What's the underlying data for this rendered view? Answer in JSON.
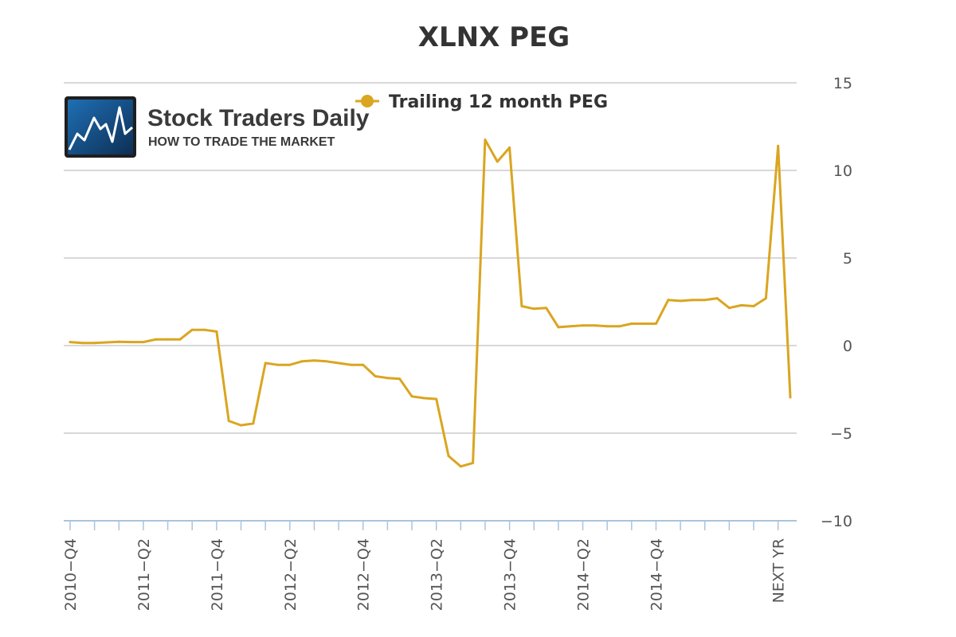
{
  "logo": {
    "name": "Stock Traders Daily",
    "tagline": "HOW TO TRADE THE MARKET"
  },
  "chart_data": {
    "type": "line",
    "title": "XLNX PEG",
    "xlabel": "",
    "ylabel": "",
    "ylim": [
      -10,
      15
    ],
    "yticks": [
      15,
      10,
      5,
      0,
      -5,
      -10
    ],
    "grid": true,
    "legend_placement": "top-center",
    "x_tick_labels": [
      {
        "index": 0,
        "label": "2010-Q4"
      },
      {
        "index": 6,
        "label": "2011-Q2"
      },
      {
        "index": 12,
        "label": "2011-Q4"
      },
      {
        "index": 18,
        "label": "2012-Q2"
      },
      {
        "index": 24,
        "label": "2012-Q4"
      },
      {
        "index": 30,
        "label": "2013-Q2"
      },
      {
        "index": 36,
        "label": "2013-Q4"
      },
      {
        "index": 42,
        "label": "2014-Q2"
      },
      {
        "index": 48,
        "label": "2014-Q4"
      },
      {
        "index": 58,
        "label": "NEXT YR"
      }
    ],
    "series": [
      {
        "name": "Trailing 12 month PEG",
        "color": "#DAA520",
        "values": [
          0.2,
          0.15,
          0.15,
          0.18,
          0.22,
          0.2,
          0.2,
          0.35,
          0.35,
          0.35,
          0.9,
          0.9,
          0.8,
          -4.3,
          -4.55,
          -4.45,
          -1.0,
          -1.1,
          -1.1,
          -0.9,
          -0.85,
          -0.9,
          -1.0,
          -1.1,
          -1.1,
          -1.75,
          -1.85,
          -1.9,
          -2.9,
          -3.0,
          -3.05,
          -6.3,
          -6.9,
          -6.7,
          11.75,
          10.5,
          11.3,
          2.25,
          2.1,
          2.15,
          1.05,
          1.1,
          1.15,
          1.15,
          1.1,
          1.1,
          1.25,
          1.25,
          1.25,
          2.6,
          2.55,
          2.6,
          2.6,
          2.7,
          2.15,
          2.3,
          2.25,
          2.7,
          11.4,
          -2.95
        ]
      }
    ]
  }
}
